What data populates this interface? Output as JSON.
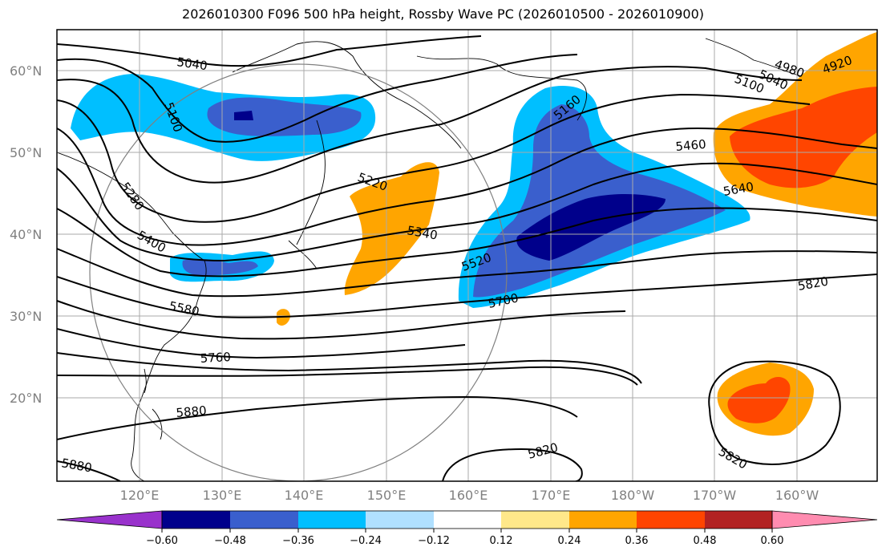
{
  "title": "2026010300 F096 500 hPa height, Rossby Wave PC (2026010500 - 2026010900)",
  "map": {
    "lat_labels": [
      "60°N",
      "50°N",
      "40°N",
      "30°N",
      "20°N"
    ],
    "lon_labels": [
      "120°E",
      "130°E",
      "140°E",
      "150°E",
      "160°E",
      "170°E",
      "180°W",
      "170°W",
      "160°W"
    ]
  },
  "contour_labels": [
    "5040",
    "5100",
    "5280",
    "5400",
    "5220",
    "5340",
    "5160",
    "5460",
    "5640",
    "5520",
    "5700",
    "5580",
    "5760",
    "5880",
    "5880",
    "5820",
    "5820",
    "5820",
    "4980",
    "5040",
    "4920",
    "5100"
  ],
  "colorbar": {
    "ticks": [
      "−0.60",
      "−0.48",
      "−0.36",
      "−0.24",
      "−0.12",
      "0.12",
      "0.24",
      "0.36",
      "0.48",
      "0.60"
    ],
    "colors": [
      "#9932cc",
      "#00008b",
      "#3a5fcd",
      "#00bfff",
      "#b0e0ff",
      "#ffffff",
      "#ffe88a",
      "#ffa500",
      "#ff4500",
      "#b22222",
      "#ff8cb0"
    ]
  }
}
